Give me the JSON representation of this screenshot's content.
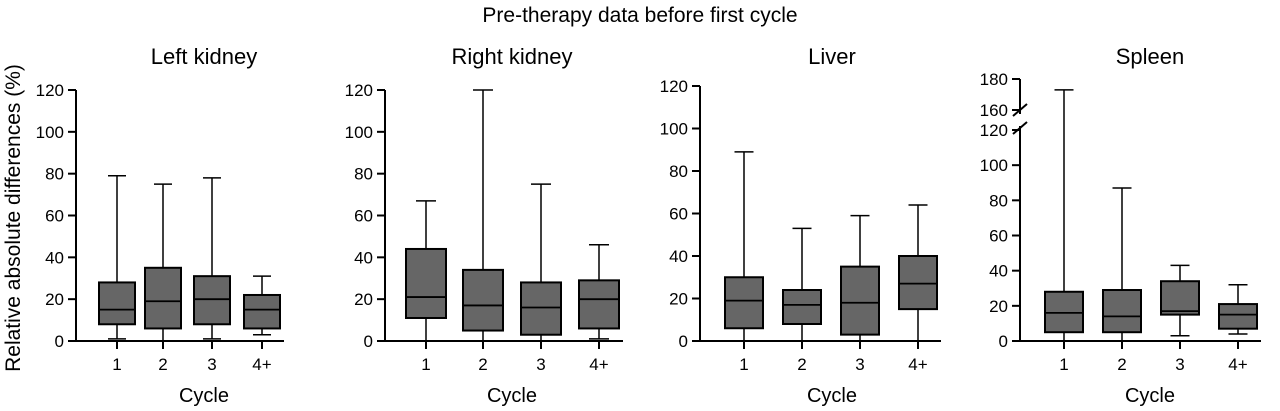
{
  "figure": {
    "suptitle": "Pre-therapy data before first cycle",
    "ylabel": "Relative absolute differences (%)"
  },
  "chart_data": [
    {
      "type": "box",
      "title": "Left kidney",
      "xlabel": "Cycle",
      "categories": [
        "1",
        "2",
        "3",
        "4+"
      ],
      "ylim": [
        0,
        120
      ],
      "yticks": [
        "0",
        "20",
        "40",
        "60",
        "80",
        "100",
        "120"
      ],
      "boxes": [
        {
          "min": 1,
          "q1": 8,
          "median": 15,
          "q3": 28,
          "max": 79
        },
        {
          "min": 0,
          "q1": 6,
          "median": 19,
          "q3": 35,
          "max": 75
        },
        {
          "min": 1,
          "q1": 8,
          "median": 20,
          "q3": 31,
          "max": 78
        },
        {
          "min": 3,
          "q1": 6,
          "median": 15,
          "q3": 22,
          "max": 31
        }
      ]
    },
    {
      "type": "box",
      "title": "Right kidney",
      "xlabel": "Cycle",
      "categories": [
        "1",
        "2",
        "3",
        "4+"
      ],
      "ylim": [
        0,
        120
      ],
      "yticks": [
        "0",
        "20",
        "40",
        "60",
        "80",
        "100",
        "120"
      ],
      "boxes": [
        {
          "min": 0,
          "q1": 11,
          "median": 21,
          "q3": 44,
          "max": 67
        },
        {
          "min": 0,
          "q1": 5,
          "median": 17,
          "q3": 34,
          "max": 120
        },
        {
          "min": 0,
          "q1": 3,
          "median": 16,
          "q3": 28,
          "max": 75
        },
        {
          "min": 1,
          "q1": 6,
          "median": 20,
          "q3": 29,
          "max": 46
        }
      ]
    },
    {
      "type": "box",
      "title": "Liver",
      "xlabel": "Cycle",
      "categories": [
        "1",
        "2",
        "3",
        "4+"
      ],
      "ylim": [
        0,
        120
      ],
      "yticks": [
        "0",
        "20",
        "40",
        "60",
        "80",
        "100",
        "120"
      ],
      "boxes": [
        {
          "min": 0,
          "q1": 6,
          "median": 19,
          "q3": 30,
          "max": 89
        },
        {
          "min": 0,
          "q1": 8,
          "median": 17,
          "q3": 24,
          "max": 53
        },
        {
          "min": 0,
          "q1": 3,
          "median": 18,
          "q3": 35,
          "max": 59
        },
        {
          "min": 0,
          "q1": 15,
          "median": 27,
          "q3": 40,
          "max": 64
        }
      ]
    },
    {
      "type": "box",
      "title": "Spleen",
      "xlabel": "Cycle",
      "categories": [
        "1",
        "2",
        "3",
        "4+"
      ],
      "ylim": [
        0,
        120
      ],
      "ylim_upper": [
        160,
        180
      ],
      "axis_break": true,
      "yticks": [
        "0",
        "20",
        "40",
        "60",
        "80",
        "100",
        "120",
        "160",
        "180"
      ],
      "boxes": [
        {
          "min": 0,
          "q1": 5,
          "median": 16,
          "q3": 28,
          "max": 173
        },
        {
          "min": 0,
          "q1": 5,
          "median": 14,
          "q3": 29,
          "max": 87
        },
        {
          "min": 3,
          "q1": 15,
          "median": 17,
          "q3": 34,
          "max": 43
        },
        {
          "min": 4,
          "q1": 7,
          "median": 15,
          "q3": 21,
          "max": 32
        }
      ]
    }
  ]
}
